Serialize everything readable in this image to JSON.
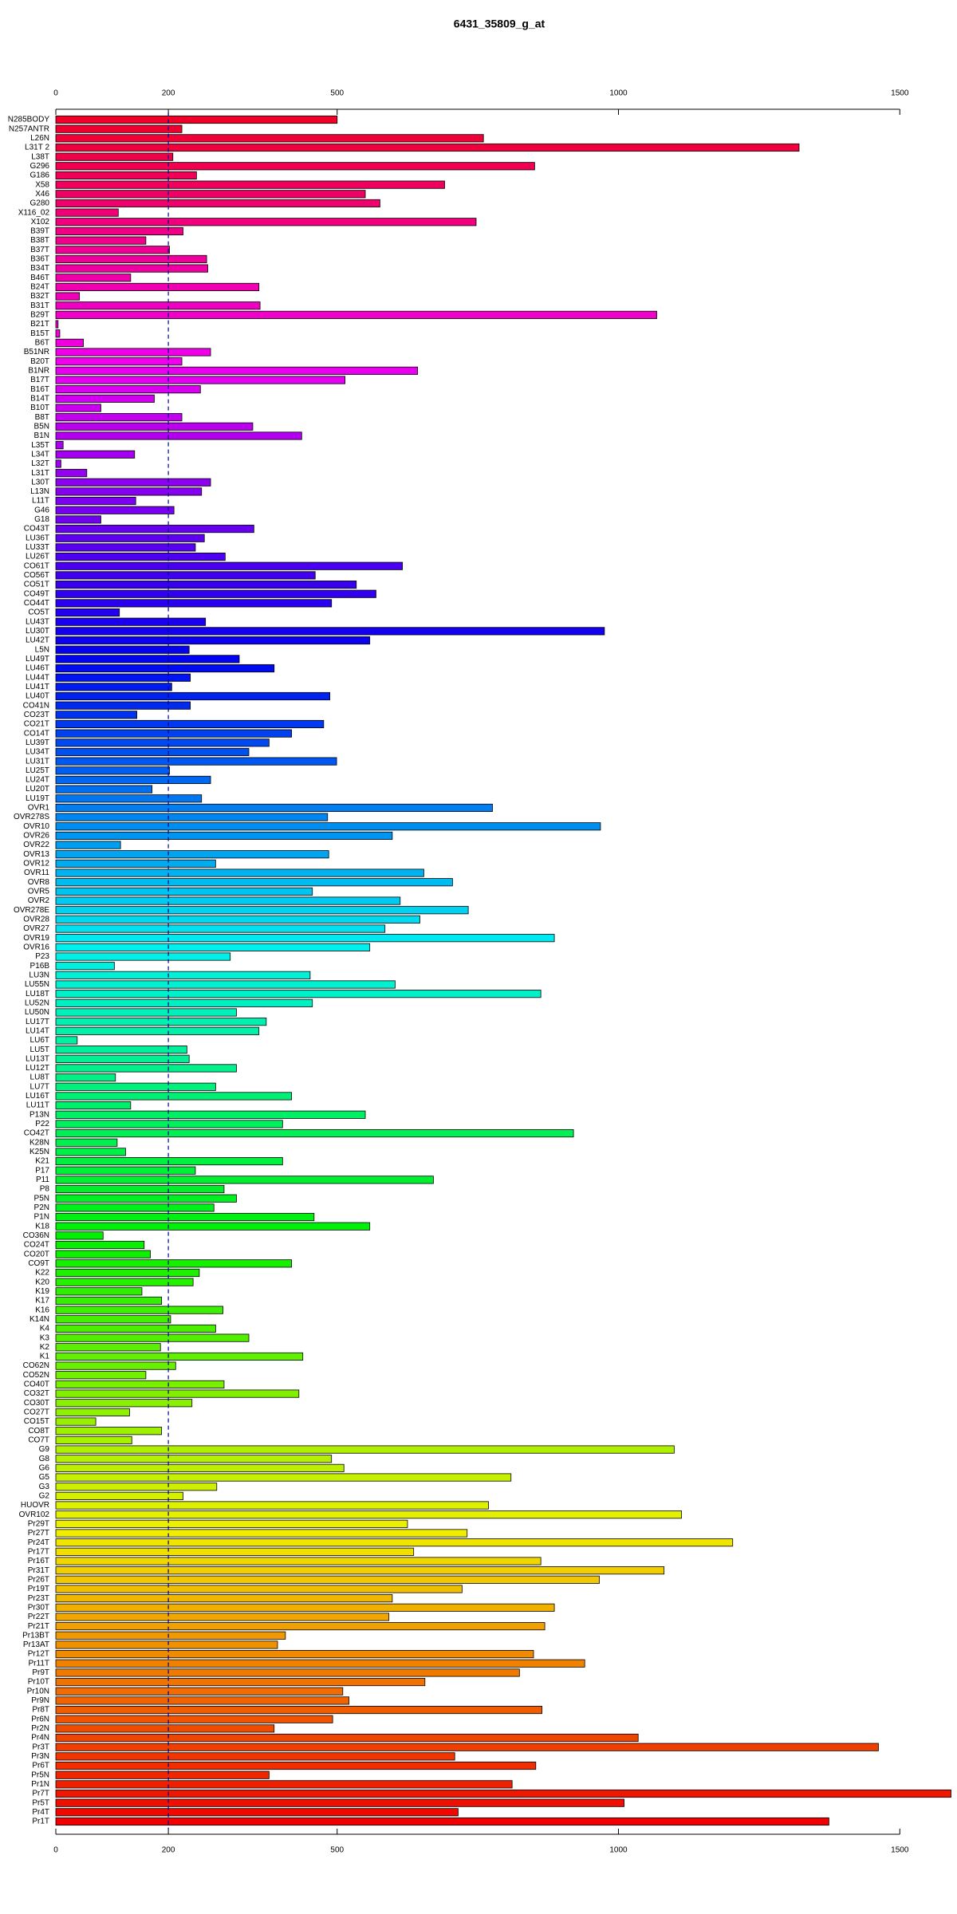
{
  "chart_data": {
    "type": "barh",
    "title": "6431_35809_g_at",
    "categories": [
      "N285BODY",
      "N257ANTR",
      "L26N",
      "L31T 2",
      "L38T",
      "G296",
      "G186",
      "X58",
      "X46",
      "G280",
      "X116_02",
      "X102",
      "B39T",
      "B38T",
      "B37T",
      "B36T",
      "B34T",
      "B46T",
      "B24T",
      "B32T",
      "B31T",
      "B29T",
      "B21T",
      "B15T",
      "B6T",
      "B51NR",
      "B20T",
      "B1NR",
      "B17T",
      "B16T",
      "B14T",
      "B10T",
      "B8T",
      "B5N",
      "B1N",
      "L35T",
      "L34T",
      "L32T",
      "L31T",
      "L30T",
      "L13N",
      "L11T",
      "G46",
      "G18",
      "CO43T",
      "LU36T",
      "LU33T",
      "LU26T",
      "CO61T",
      "CO56T",
      "CO51T",
      "CO49T",
      "CO44T",
      "CO5T",
      "LU43T",
      "LU30T",
      "LU42T",
      "L5N",
      "LU49T",
      "LU46T",
      "LU44T",
      "LU41T",
      "LU40T",
      "CO41N",
      "CO23T",
      "CO21T",
      "CO14T",
      "LU39T",
      "LU34T",
      "LU31T",
      "LU25T",
      "LU24T",
      "LU20T",
      "LU19T",
      "OVR1",
      "OVR278S",
      "OVR10",
      "OVR26",
      "OVR22",
      "OVR13",
      "OVR12",
      "OVR11",
      "OVR8",
      "OVR5",
      "OVR2",
      "OVR278E",
      "OVR28",
      "OVR27",
      "OVR19",
      "OVR16",
      "P23",
      "P16B",
      "LU3N",
      "LU55N",
      "LU18T",
      "LU52N",
      "LU50N",
      "LU17T",
      "LU14T",
      "LU6T",
      "LU5T",
      "LU13T",
      "LU12T",
      "LU8T",
      "LU7T",
      "LU16T",
      "LU11T",
      "P13N",
      "P22",
      "CO42T",
      "K28N",
      "K25N",
      "K21",
      "P17",
      "P11",
      "P8",
      "P5N",
      "P2N",
      "P1N",
      "K18",
      "CO36N",
      "CO24T",
      "CO20T",
      "CO9T",
      "K22",
      "K20",
      "K19",
      "K17",
      "K16",
      "K14N",
      "K4",
      "K3",
      "K2",
      "K1",
      "CO62N",
      "CO52N",
      "CO40T",
      "CO32T",
      "CO30T",
      "CO27T",
      "CO15T",
      "CO8T",
      "CO7T",
      "G9",
      "G8",
      "G6",
      "G5",
      "G3",
      "G2",
      "HUOVR",
      "OVR102",
      "Pr29T",
      "Pr27T",
      "Pr24T",
      "Pr17T",
      "Pr16T",
      "Pr31T",
      "Pr26T",
      "Pr19T",
      "Pr23T",
      "Pr30T",
      "Pr22T",
      "Pr21T",
      "Pr13BT",
      "Pr13AT",
      "Pr12T",
      "Pr11T",
      "Pr9T",
      "Pr10T",
      "Pr10N",
      "Pr9N",
      "Pr8T",
      "Pr6N",
      "Pr2N",
      "Pr4N",
      "Pr3T",
      "Pr3N",
      "Pr6T",
      "Pr5N",
      "Pr1N",
      "Pr7T",
      "Pr5T",
      "Pr4T",
      "Pr1T"
    ],
    "values": [
      500,
      224,
      760,
      1321,
      208,
      851,
      250,
      691,
      550,
      576,
      111,
      747,
      226,
      160,
      202,
      268,
      270,
      133,
      361,
      42,
      363,
      1068,
      4,
      7,
      49,
      275,
      224,
      643,
      514,
      257,
      175,
      80,
      224,
      350,
      437,
      13,
      140,
      9,
      55,
      275,
      259,
      142,
      210,
      80,
      352,
      264,
      248,
      301,
      616,
      461,
      534,
      569,
      490,
      113,
      266,
      975,
      558,
      237,
      326,
      388,
      239,
      206,
      487,
      239,
      144,
      476,
      419,
      379,
      343,
      499,
      202,
      275,
      171,
      259,
      776,
      483,
      968,
      598,
      115,
      485,
      284,
      654,
      705,
      456,
      612,
      733,
      647,
      585,
      886,
      558,
      310,
      104,
      452,
      603,
      862,
      456,
      321,
      374,
      361,
      38,
      233,
      237,
      321,
      106,
      284,
      419,
      133,
      550,
      403,
      920,
      109,
      124,
      403,
      248,
      671,
      299,
      321,
      281,
      459,
      558,
      84,
      157,
      168,
      419,
      255,
      244,
      153,
      188,
      297,
      204,
      284,
      343,
      186,
      439,
      213,
      160,
      299,
      432,
      242,
      131,
      71,
      188,
      135,
      1099,
      490,
      512,
      809,
      286,
      226,
      769,
      1112,
      625,
      731,
      1203,
      636,
      862,
      1081,
      966,
      722,
      598,
      886,
      592,
      869,
      408,
      394,
      849,
      940,
      824,
      656,
      510,
      521,
      864,
      492,
      388,
      1035,
      1462,
      709,
      853,
      379,
      811,
      1591,
      1010,
      715,
      1374
    ],
    "xlim": [
      0,
      1596
    ],
    "xticks": [
      0,
      200,
      500,
      1000,
      1500
    ],
    "reference_line": 200,
    "reference_line_color": "#00008b",
    "color_hue_range": [
      350,
      0
    ]
  }
}
